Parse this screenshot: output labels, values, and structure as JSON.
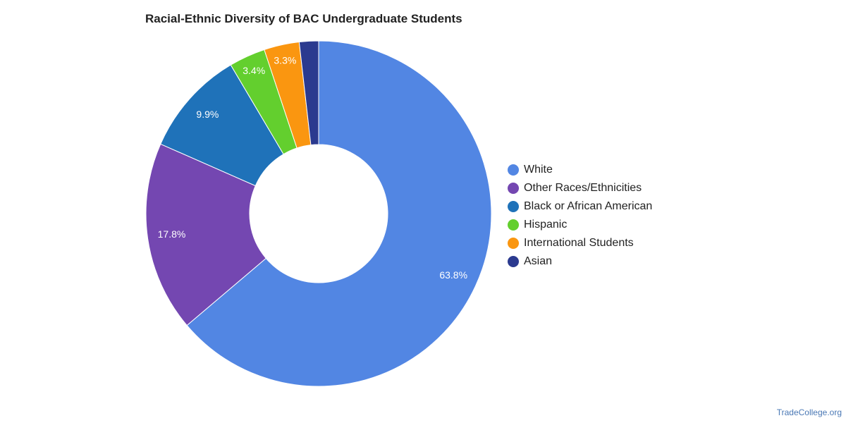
{
  "chart_data": {
    "type": "pie",
    "title": "Racial-Ethnic Diversity of BAC Undergraduate Students",
    "donut": true,
    "legend_position": "right",
    "slices": [
      {
        "label": "White",
        "value": 63.8,
        "display": "63.8%",
        "color": "#5286e3"
      },
      {
        "label": "Other Races/Ethnicities",
        "value": 17.8,
        "display": "17.8%",
        "color": "#7447b1"
      },
      {
        "label": "Black or African American",
        "value": 9.9,
        "display": "9.9%",
        "color": "#1f72b9"
      },
      {
        "label": "Hispanic",
        "value": 3.4,
        "display": "3.4%",
        "color": "#63cf2e"
      },
      {
        "label": "International Students",
        "value": 3.3,
        "display": "3.3%",
        "color": "#fa9610"
      },
      {
        "label": "Asian",
        "value": 1.8,
        "display": "",
        "color": "#2b3a8f"
      }
    ]
  },
  "footer": {
    "credit": "TradeCollege.org"
  }
}
